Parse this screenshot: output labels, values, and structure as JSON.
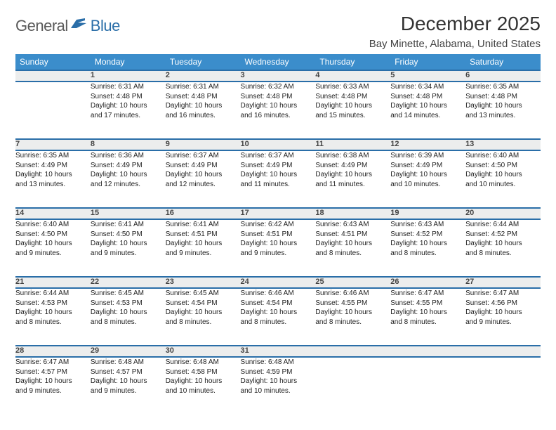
{
  "logo": {
    "word1": "General",
    "word2": "Blue"
  },
  "title": "December 2025",
  "location": "Bay Minette, Alabama, United States",
  "style": {
    "type": "table",
    "header_bg": "#3b8dcb",
    "header_text_color": "#ffffff",
    "row_border_color": "#2a6ea8",
    "daynum_bg": "#eceded",
    "body_bg": "#ffffff",
    "font_family": "Arial",
    "title_fontsize_pt": 21,
    "location_fontsize_pt": 11,
    "header_fontsize_pt": 9,
    "daynum_fontsize_pt": 8,
    "cell_fontsize_pt": 7.5,
    "columns": 7,
    "rows": 5
  },
  "day_headers": [
    "Sunday",
    "Monday",
    "Tuesday",
    "Wednesday",
    "Thursday",
    "Friday",
    "Saturday"
  ],
  "weeks": [
    {
      "nums": [
        "",
        "1",
        "2",
        "3",
        "4",
        "5",
        "6"
      ],
      "cells": [
        {
          "lines": []
        },
        {
          "lines": [
            "Sunrise: 6:31 AM",
            "Sunset: 4:48 PM",
            "Daylight: 10 hours",
            "and 17 minutes."
          ]
        },
        {
          "lines": [
            "Sunrise: 6:31 AM",
            "Sunset: 4:48 PM",
            "Daylight: 10 hours",
            "and 16 minutes."
          ]
        },
        {
          "lines": [
            "Sunrise: 6:32 AM",
            "Sunset: 4:48 PM",
            "Daylight: 10 hours",
            "and 16 minutes."
          ]
        },
        {
          "lines": [
            "Sunrise: 6:33 AM",
            "Sunset: 4:48 PM",
            "Daylight: 10 hours",
            "and 15 minutes."
          ]
        },
        {
          "lines": [
            "Sunrise: 6:34 AM",
            "Sunset: 4:48 PM",
            "Daylight: 10 hours",
            "and 14 minutes."
          ]
        },
        {
          "lines": [
            "Sunrise: 6:35 AM",
            "Sunset: 4:48 PM",
            "Daylight: 10 hours",
            "and 13 minutes."
          ]
        }
      ]
    },
    {
      "nums": [
        "7",
        "8",
        "9",
        "10",
        "11",
        "12",
        "13"
      ],
      "cells": [
        {
          "lines": [
            "Sunrise: 6:35 AM",
            "Sunset: 4:49 PM",
            "Daylight: 10 hours",
            "and 13 minutes."
          ]
        },
        {
          "lines": [
            "Sunrise: 6:36 AM",
            "Sunset: 4:49 PM",
            "Daylight: 10 hours",
            "and 12 minutes."
          ]
        },
        {
          "lines": [
            "Sunrise: 6:37 AM",
            "Sunset: 4:49 PM",
            "Daylight: 10 hours",
            "and 12 minutes."
          ]
        },
        {
          "lines": [
            "Sunrise: 6:37 AM",
            "Sunset: 4:49 PM",
            "Daylight: 10 hours",
            "and 11 minutes."
          ]
        },
        {
          "lines": [
            "Sunrise: 6:38 AM",
            "Sunset: 4:49 PM",
            "Daylight: 10 hours",
            "and 11 minutes."
          ]
        },
        {
          "lines": [
            "Sunrise: 6:39 AM",
            "Sunset: 4:49 PM",
            "Daylight: 10 hours",
            "and 10 minutes."
          ]
        },
        {
          "lines": [
            "Sunrise: 6:40 AM",
            "Sunset: 4:50 PM",
            "Daylight: 10 hours",
            "and 10 minutes."
          ]
        }
      ]
    },
    {
      "nums": [
        "14",
        "15",
        "16",
        "17",
        "18",
        "19",
        "20"
      ],
      "cells": [
        {
          "lines": [
            "Sunrise: 6:40 AM",
            "Sunset: 4:50 PM",
            "Daylight: 10 hours",
            "and 9 minutes."
          ]
        },
        {
          "lines": [
            "Sunrise: 6:41 AM",
            "Sunset: 4:50 PM",
            "Daylight: 10 hours",
            "and 9 minutes."
          ]
        },
        {
          "lines": [
            "Sunrise: 6:41 AM",
            "Sunset: 4:51 PM",
            "Daylight: 10 hours",
            "and 9 minutes."
          ]
        },
        {
          "lines": [
            "Sunrise: 6:42 AM",
            "Sunset: 4:51 PM",
            "Daylight: 10 hours",
            "and 9 minutes."
          ]
        },
        {
          "lines": [
            "Sunrise: 6:43 AM",
            "Sunset: 4:51 PM",
            "Daylight: 10 hours",
            "and 8 minutes."
          ]
        },
        {
          "lines": [
            "Sunrise: 6:43 AM",
            "Sunset: 4:52 PM",
            "Daylight: 10 hours",
            "and 8 minutes."
          ]
        },
        {
          "lines": [
            "Sunrise: 6:44 AM",
            "Sunset: 4:52 PM",
            "Daylight: 10 hours",
            "and 8 minutes."
          ]
        }
      ]
    },
    {
      "nums": [
        "21",
        "22",
        "23",
        "24",
        "25",
        "26",
        "27"
      ],
      "cells": [
        {
          "lines": [
            "Sunrise: 6:44 AM",
            "Sunset: 4:53 PM",
            "Daylight: 10 hours",
            "and 8 minutes."
          ]
        },
        {
          "lines": [
            "Sunrise: 6:45 AM",
            "Sunset: 4:53 PM",
            "Daylight: 10 hours",
            "and 8 minutes."
          ]
        },
        {
          "lines": [
            "Sunrise: 6:45 AM",
            "Sunset: 4:54 PM",
            "Daylight: 10 hours",
            "and 8 minutes."
          ]
        },
        {
          "lines": [
            "Sunrise: 6:46 AM",
            "Sunset: 4:54 PM",
            "Daylight: 10 hours",
            "and 8 minutes."
          ]
        },
        {
          "lines": [
            "Sunrise: 6:46 AM",
            "Sunset: 4:55 PM",
            "Daylight: 10 hours",
            "and 8 minutes."
          ]
        },
        {
          "lines": [
            "Sunrise: 6:47 AM",
            "Sunset: 4:55 PM",
            "Daylight: 10 hours",
            "and 8 minutes."
          ]
        },
        {
          "lines": [
            "Sunrise: 6:47 AM",
            "Sunset: 4:56 PM",
            "Daylight: 10 hours",
            "and 9 minutes."
          ]
        }
      ]
    },
    {
      "nums": [
        "28",
        "29",
        "30",
        "31",
        "",
        "",
        ""
      ],
      "cells": [
        {
          "lines": [
            "Sunrise: 6:47 AM",
            "Sunset: 4:57 PM",
            "Daylight: 10 hours",
            "and 9 minutes."
          ]
        },
        {
          "lines": [
            "Sunrise: 6:48 AM",
            "Sunset: 4:57 PM",
            "Daylight: 10 hours",
            "and 9 minutes."
          ]
        },
        {
          "lines": [
            "Sunrise: 6:48 AM",
            "Sunset: 4:58 PM",
            "Daylight: 10 hours",
            "and 10 minutes."
          ]
        },
        {
          "lines": [
            "Sunrise: 6:48 AM",
            "Sunset: 4:59 PM",
            "Daylight: 10 hours",
            "and 10 minutes."
          ]
        },
        {
          "lines": []
        },
        {
          "lines": []
        },
        {
          "lines": []
        }
      ]
    }
  ]
}
